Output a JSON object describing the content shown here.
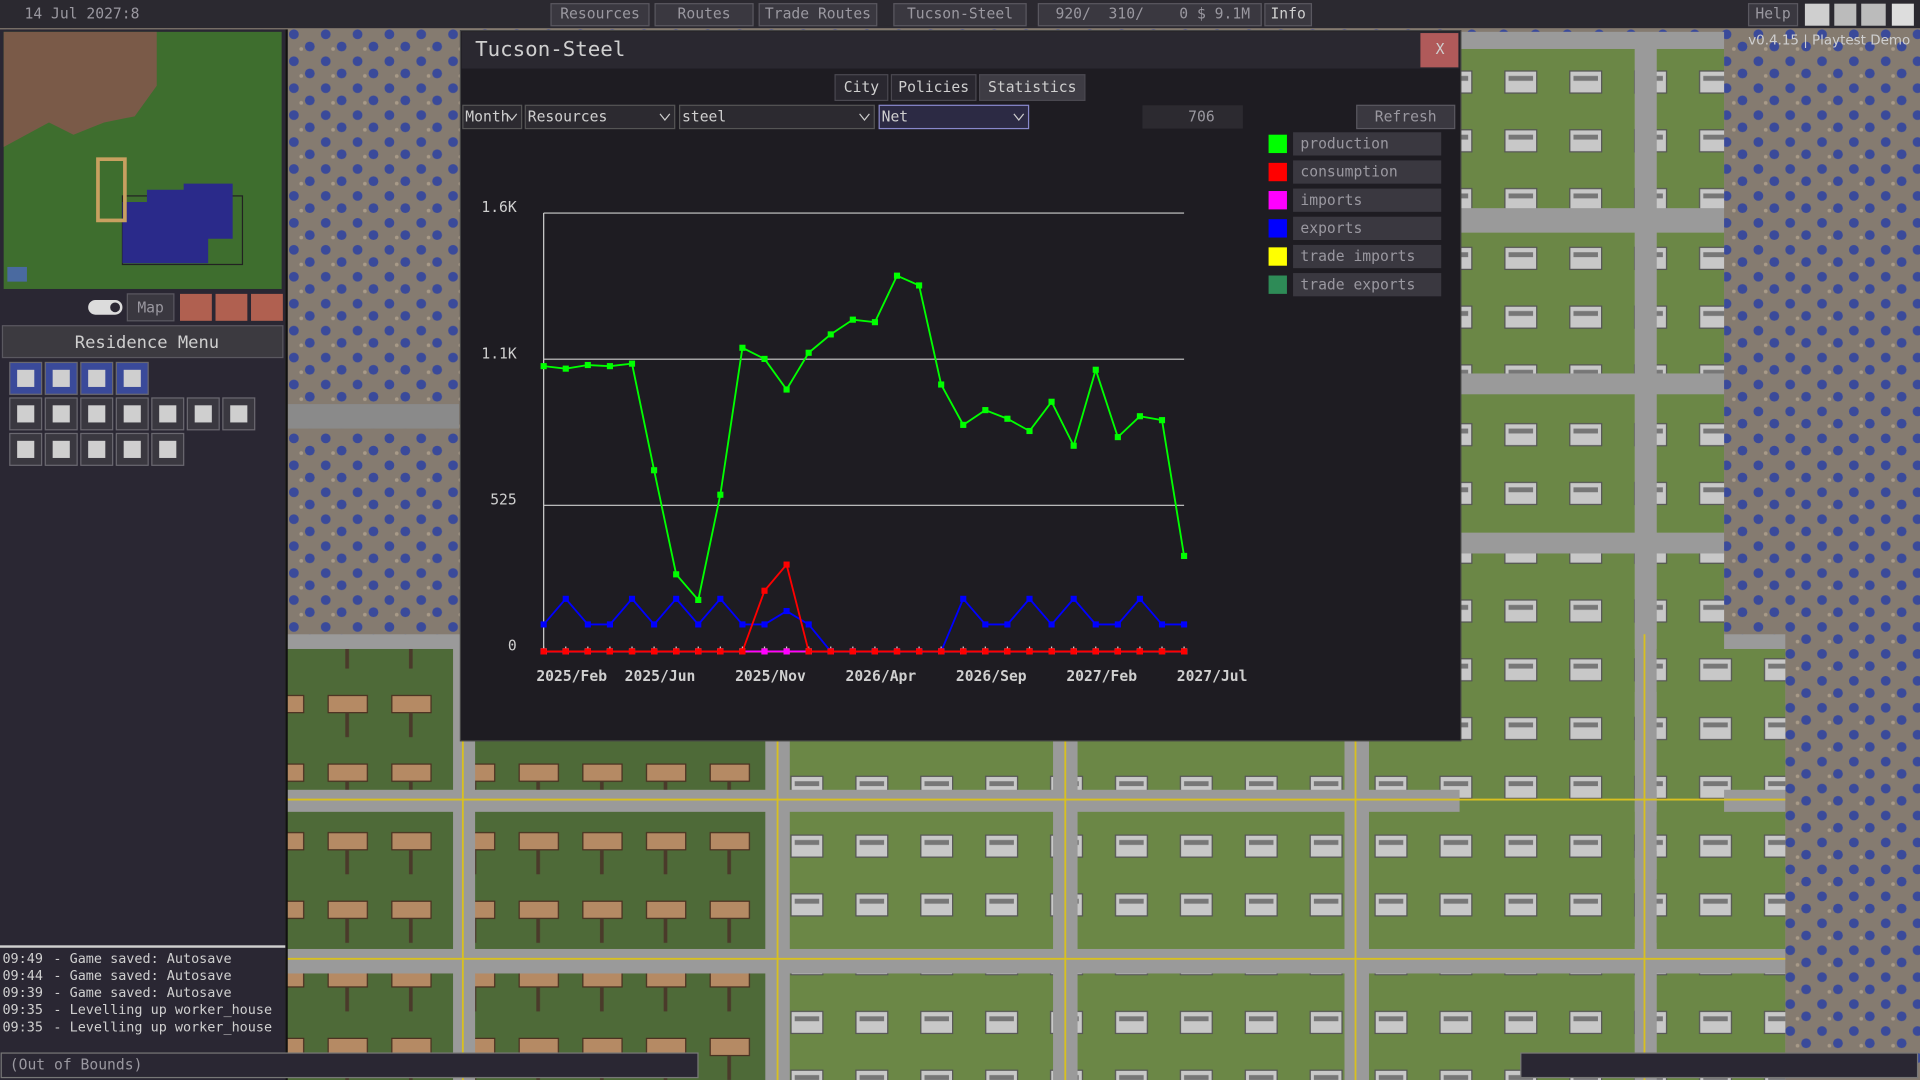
{
  "top_bar": {
    "date": "14 Jul 2027:8",
    "buttons": [
      "Resources",
      "Routes",
      "Trade Routes",
      "Tucson-Steel"
    ],
    "stats": "920/  310/    0 $ 9.1M",
    "info": "Info",
    "help": "Help",
    "version": "v0.4.15 | Playtest Demo"
  },
  "left_panel": {
    "map_button": "Map",
    "menu_title": "Residence Menu",
    "log": [
      {
        "time": "09:49",
        "text": " - Game saved: Autosave"
      },
      {
        "time": "09:44",
        "text": " - Game saved: Autosave"
      },
      {
        "time": "09:39",
        "text": " - Game saved: Autosave"
      },
      {
        "time": "09:35",
        "text": " - Levelling up worker_house"
      },
      {
        "time": "09:35",
        "text": " - Levelling up worker_house"
      }
    ],
    "status": "(Out of Bounds)"
  },
  "window": {
    "title": "Tucson-Steel",
    "close": "X",
    "tabs": [
      "City",
      "Policies",
      "Statistics"
    ],
    "selects": [
      "Month",
      "Resources",
      "steel",
      "Net"
    ],
    "value": "706",
    "refresh": "Refresh"
  },
  "chart_data": {
    "type": "line",
    "categories": [
      "2025/Feb",
      null,
      null,
      null,
      "2025/Jun",
      null,
      null,
      null,
      null,
      "2025/Nov",
      null,
      null,
      null,
      null,
      "2026/Apr",
      null,
      null,
      null,
      null,
      "2026/Sep",
      null,
      null,
      null,
      null,
      "2027/Feb",
      null,
      null,
      null,
      null,
      "2027/Jul"
    ],
    "ylim": [
      0,
      1575
    ],
    "yticks": [
      0,
      525,
      {
        "value": 1050,
        "label": "1.1K"
      },
      {
        "value": 1575,
        "label": "1.6K"
      }
    ],
    "grid": true,
    "series": [
      {
        "name": "production",
        "color": "#00ff00",
        "values": [
          1025,
          1016,
          1029,
          1025,
          1034,
          651,
          277,
          185,
          563,
          1091,
          1051,
          941,
          1073,
          1139,
          1192,
          1183,
          1350,
          1315,
          959,
          814,
          867,
          836,
          792,
          897,
          739,
          1012,
          770,
          845,
          831,
          343
        ]
      },
      {
        "name": "consumption",
        "color": "#ff0000",
        "values": [
          0,
          0,
          0,
          0,
          0,
          0,
          0,
          0,
          0,
          0,
          218,
          312,
          0,
          0,
          0,
          0,
          0,
          0,
          0,
          0,
          0,
          0,
          0,
          0,
          0,
          0,
          0,
          0,
          0,
          0
        ]
      },
      {
        "name": "imports",
        "color": "#ff00ff",
        "values": [
          0,
          0,
          0,
          0,
          0,
          0,
          0,
          0,
          0,
          0,
          0,
          0,
          0,
          0,
          0,
          0,
          0,
          0,
          0,
          0,
          0,
          0,
          0,
          0,
          0,
          0,
          0,
          0,
          0,
          0
        ]
      },
      {
        "name": "exports",
        "color": "#0000ff",
        "values": [
          97,
          189,
          97,
          97,
          189,
          97,
          189,
          97,
          189,
          97,
          97,
          145,
          97,
          0,
          0,
          0,
          0,
          0,
          0,
          189,
          97,
          97,
          189,
          97,
          189,
          97,
          97,
          189,
          97,
          97
        ]
      },
      {
        "name": "trade imports",
        "color": "#ffff00",
        "values": [
          0,
          0,
          0,
          0,
          0,
          0,
          0,
          0,
          0,
          0,
          0,
          0,
          0,
          0,
          0,
          0,
          0,
          0,
          0,
          0,
          0,
          0,
          0,
          0,
          0,
          0,
          0,
          0,
          0,
          0
        ]
      },
      {
        "name": "trade exports",
        "color": "#2e8b57",
        "values": [
          0,
          0,
          0,
          0,
          0,
          0,
          0,
          0,
          0,
          0,
          0,
          0,
          0,
          0,
          0,
          0,
          0,
          0,
          0,
          0,
          0,
          0,
          0,
          0,
          0,
          0,
          0,
          0,
          0,
          0
        ]
      }
    ]
  }
}
